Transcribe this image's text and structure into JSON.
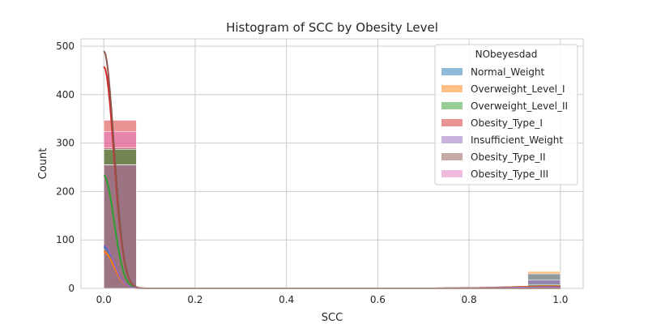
{
  "chart_data": {
    "type": "bar",
    "title": "Histogram of SCC by Obesity Level",
    "xlabel": "SCC",
    "ylabel": "Count",
    "xlim": [
      -0.05,
      1.05
    ],
    "ylim": [
      0,
      515
    ],
    "xticks": [
      "0.0",
      "0.2",
      "0.4",
      "0.6",
      "0.8",
      "1.0"
    ],
    "xtick_values": [
      0,
      0.2,
      0.4,
      0.6,
      0.8,
      1.0
    ],
    "yticks": [
      "0",
      "100",
      "200",
      "300",
      "400",
      "500"
    ],
    "ytick_values": [
      0,
      100,
      200,
      300,
      400,
      500
    ],
    "grid": true,
    "bins": [
      [
        0,
        0.0714
      ],
      [
        0.9286,
        1.0
      ]
    ],
    "legend": {
      "title": "NObeyesdad",
      "placement": "top-right"
    },
    "series": [
      {
        "name": "Normal_Weight",
        "color": "#1f77b4",
        "values": [
          255,
          30
        ],
        "kde_at_zero": 85
      },
      {
        "name": "Overweight_Level_I",
        "color": "#ff7f0e",
        "values": [
          255,
          35
        ],
        "kde_at_zero": 75
      },
      {
        "name": "Overweight_Level_II",
        "color": "#2ca02c",
        "values": [
          287,
          8
        ],
        "kde_at_zero": 233
      },
      {
        "name": "Obesity_Type_I",
        "color": "#d62728",
        "values": [
          347,
          5
        ],
        "kde_at_zero": 458
      },
      {
        "name": "Insufficient_Weight",
        "color": "#9467bd",
        "values": [
          255,
          17
        ],
        "kde_at_zero": 88
      },
      {
        "name": "Obesity_Type_II",
        "color": "#8c564b",
        "values": [
          290,
          0
        ],
        "kde_at_zero": 490
      },
      {
        "name": "Obesity_Type_III",
        "color": "#e377c2",
        "values": [
          324,
          0
        ],
        "kde_at_zero": 0
      }
    ]
  }
}
